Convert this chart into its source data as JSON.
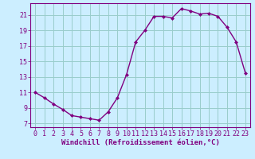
{
  "x": [
    0,
    1,
    2,
    3,
    4,
    5,
    6,
    7,
    8,
    9,
    10,
    11,
    12,
    13,
    14,
    15,
    16,
    17,
    18,
    19,
    20,
    21,
    22,
    23
  ],
  "y": [
    11.0,
    10.3,
    9.5,
    8.8,
    8.0,
    7.8,
    7.6,
    7.4,
    8.5,
    10.3,
    13.3,
    17.5,
    19.0,
    20.8,
    20.8,
    20.6,
    21.8,
    21.5,
    21.1,
    21.2,
    20.8,
    19.4,
    17.5,
    13.5
  ],
  "line_color": "#800080",
  "marker": "D",
  "marker_size": 2.0,
  "bg_color": "#cceeff",
  "grid_color": "#99cccc",
  "xlabel": "Windchill (Refroidissement éolien,°C)",
  "xlabel_fontsize": 6.5,
  "tick_fontsize": 6.0,
  "ylim": [
    6.5,
    22.5
  ],
  "xlim": [
    -0.5,
    23.5
  ],
  "yticks": [
    7,
    9,
    11,
    13,
    15,
    17,
    19,
    21
  ],
  "xticks": [
    0,
    1,
    2,
    3,
    4,
    5,
    6,
    7,
    8,
    9,
    10,
    11,
    12,
    13,
    14,
    15,
    16,
    17,
    18,
    19,
    20,
    21,
    22,
    23
  ],
  "line_width": 1.0,
  "title": ""
}
